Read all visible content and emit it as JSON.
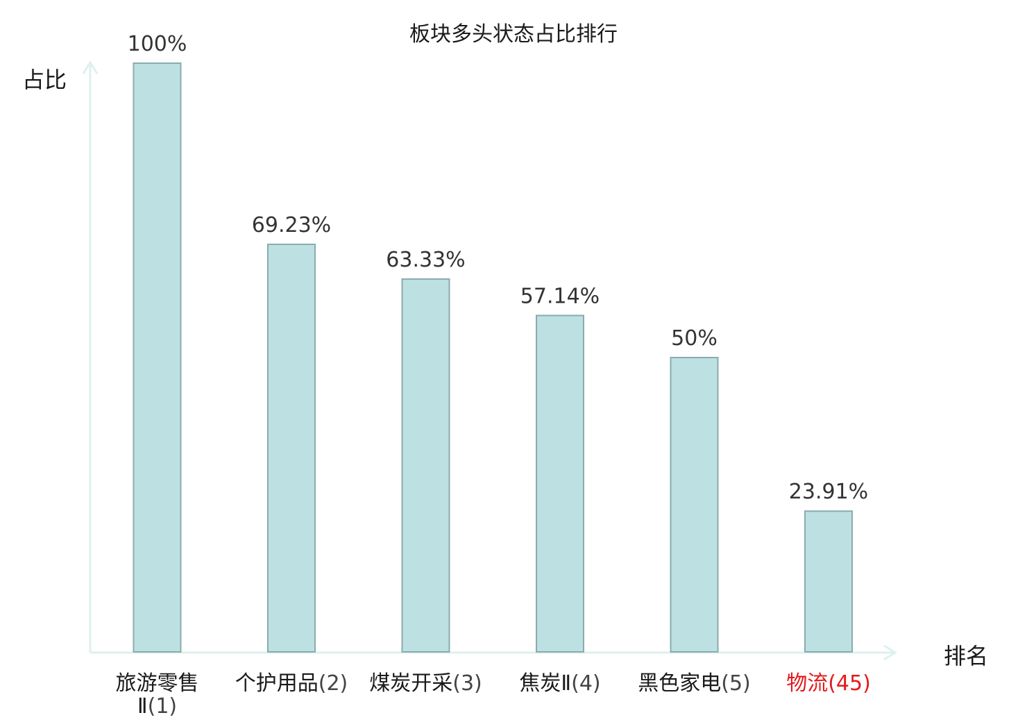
{
  "chart_data": {
    "type": "bar",
    "title": "板块多头状态占比排行",
    "ylabel": "占比",
    "xlabel": "排名",
    "ylim": [
      0,
      100
    ],
    "grid": false,
    "categories": [
      {
        "name_lines": [
          "旅游零售",
          "Ⅱ"
        ],
        "rank": "(1)",
        "highlight": false
      },
      {
        "name_lines": [
          "个护用品"
        ],
        "rank": "(2)",
        "highlight": false
      },
      {
        "name_lines": [
          "煤炭开采"
        ],
        "rank": "(3)",
        "highlight": false
      },
      {
        "name_lines": [
          "焦炭Ⅱ"
        ],
        "rank": "(4)",
        "highlight": false
      },
      {
        "name_lines": [
          "黑色家电"
        ],
        "rank": "(5)",
        "highlight": false
      },
      {
        "name_lines": [
          "物流"
        ],
        "rank": "(45)",
        "highlight": true
      }
    ],
    "values": [
      100,
      69.23,
      63.33,
      57.14,
      50,
      23.91
    ],
    "value_labels": [
      "100%",
      "69.23%",
      "63.33%",
      "57.14%",
      "50%",
      "23.91%"
    ]
  },
  "colors": {
    "bar_fill": "#bde0e3",
    "bar_stroke": "#8aabad",
    "axis": "#ddf1ee",
    "text": "#1a1a1a",
    "value_text": "#333333",
    "rank_text": "#444444",
    "highlight": "#e41a1c"
  }
}
